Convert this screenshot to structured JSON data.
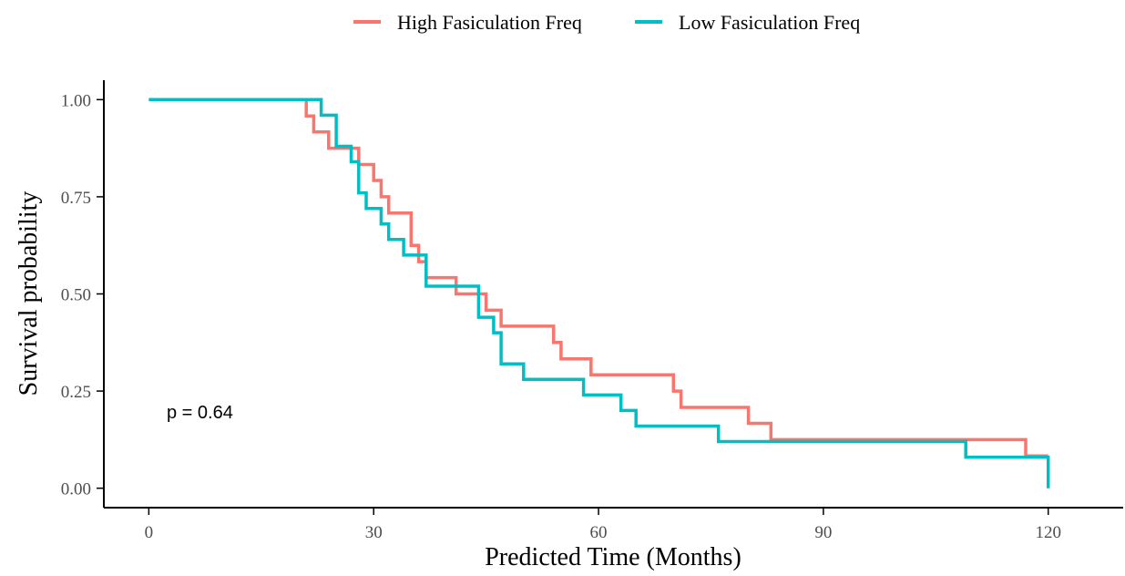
{
  "chart_data": {
    "type": "line",
    "xlabel": "Predicted Time (Months)",
    "ylabel": "Survival probability",
    "xlim": [
      -6,
      130
    ],
    "ylim": [
      -0.05,
      1.05
    ],
    "x_ticks": [
      "0",
      "30",
      "60",
      "90",
      "120"
    ],
    "y_ticks": [
      "0.00",
      "0.25",
      "0.50",
      "0.75",
      "1.00"
    ],
    "legend_position": "top",
    "grid": false,
    "annotations": [
      {
        "text": "p = 0.64",
        "x": 2.5,
        "y": 0.195
      }
    ],
    "series": [
      {
        "name": "High Fasiculation Freq",
        "color": "#F8766D",
        "step_points": [
          [
            0,
            1.0
          ],
          [
            21,
            1.0
          ],
          [
            21,
            0.958
          ],
          [
            22,
            0.958
          ],
          [
            22,
            0.917
          ],
          [
            24,
            0.917
          ],
          [
            24,
            0.875
          ],
          [
            28,
            0.875
          ],
          [
            28,
            0.833
          ],
          [
            30,
            0.833
          ],
          [
            30,
            0.792
          ],
          [
            31,
            0.792
          ],
          [
            31,
            0.75
          ],
          [
            32,
            0.75
          ],
          [
            32,
            0.708
          ],
          [
            35,
            0.708
          ],
          [
            35,
            0.625
          ],
          [
            36,
            0.625
          ],
          [
            36,
            0.583
          ],
          [
            37,
            0.583
          ],
          [
            37,
            0.542
          ],
          [
            41,
            0.542
          ],
          [
            41,
            0.5
          ],
          [
            45,
            0.5
          ],
          [
            45,
            0.458
          ],
          [
            47,
            0.458
          ],
          [
            47,
            0.417
          ],
          [
            54,
            0.417
          ],
          [
            54,
            0.375
          ],
          [
            55,
            0.375
          ],
          [
            55,
            0.333
          ],
          [
            59,
            0.333
          ],
          [
            59,
            0.292
          ],
          [
            70,
            0.292
          ],
          [
            70,
            0.25
          ],
          [
            71,
            0.25
          ],
          [
            71,
            0.208
          ],
          [
            80,
            0.208
          ],
          [
            80,
            0.167
          ],
          [
            83,
            0.167
          ],
          [
            83,
            0.125
          ],
          [
            117,
            0.125
          ],
          [
            117,
            0.083
          ],
          [
            120,
            0.083
          ]
        ]
      },
      {
        "name": "Low Fasiculation Freq",
        "color": "#00BFC4",
        "step_points": [
          [
            0,
            1.0
          ],
          [
            23,
            1.0
          ],
          [
            23,
            0.96
          ],
          [
            25,
            0.96
          ],
          [
            25,
            0.88
          ],
          [
            27,
            0.88
          ],
          [
            27,
            0.84
          ],
          [
            28,
            0.84
          ],
          [
            28,
            0.76
          ],
          [
            29,
            0.76
          ],
          [
            29,
            0.72
          ],
          [
            31,
            0.72
          ],
          [
            31,
            0.68
          ],
          [
            32,
            0.68
          ],
          [
            32,
            0.64
          ],
          [
            34,
            0.64
          ],
          [
            34,
            0.6
          ],
          [
            37,
            0.6
          ],
          [
            37,
            0.52
          ],
          [
            44,
            0.52
          ],
          [
            44,
            0.44
          ],
          [
            46,
            0.44
          ],
          [
            46,
            0.4
          ],
          [
            47,
            0.4
          ],
          [
            47,
            0.32
          ],
          [
            50,
            0.32
          ],
          [
            50,
            0.28
          ],
          [
            58,
            0.28
          ],
          [
            58,
            0.24
          ],
          [
            63,
            0.24
          ],
          [
            63,
            0.2
          ],
          [
            65,
            0.2
          ],
          [
            65,
            0.16
          ],
          [
            76,
            0.16
          ],
          [
            76,
            0.12
          ],
          [
            109,
            0.12
          ],
          [
            109,
            0.08
          ],
          [
            120,
            0.08
          ],
          [
            120,
            0.0
          ]
        ]
      }
    ]
  }
}
